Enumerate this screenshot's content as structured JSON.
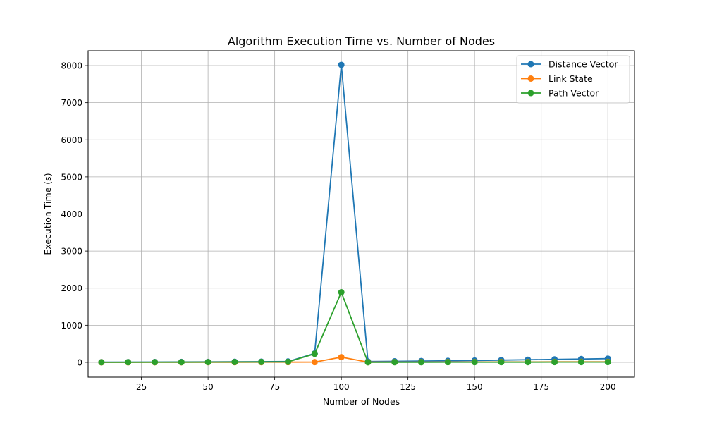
{
  "chart_data": {
    "type": "line",
    "title": "Algorithm Execution Time vs. Number of Nodes",
    "xlabel": "Number of Nodes",
    "ylabel": "Execution Time (s)",
    "xlim": [
      5,
      210
    ],
    "ylim": [
      -400,
      8400
    ],
    "x_ticks": [
      25,
      50,
      75,
      100,
      125,
      150,
      175,
      200
    ],
    "y_ticks": [
      0,
      1000,
      2000,
      3000,
      4000,
      5000,
      6000,
      7000,
      8000
    ],
    "grid": true,
    "legend_position": "top-right",
    "x": [
      10,
      20,
      30,
      40,
      50,
      60,
      70,
      80,
      90,
      100,
      110,
      120,
      130,
      140,
      150,
      160,
      170,
      180,
      190,
      200
    ],
    "series": [
      {
        "name": "Distance Vector",
        "color": "#1f77b4",
        "values": [
          5,
          6,
          8,
          10,
          12,
          15,
          18,
          22,
          240,
          8020,
          22,
          28,
          35,
          42,
          50,
          60,
          70,
          80,
          90,
          100
        ]
      },
      {
        "name": "Link State",
        "color": "#ff7f0e",
        "values": [
          1,
          1,
          2,
          2,
          3,
          3,
          4,
          5,
          6,
          140,
          5,
          6,
          7,
          8,
          9,
          10,
          11,
          12,
          13,
          14
        ]
      },
      {
        "name": "Path Vector",
        "color": "#2ca02c",
        "values": [
          2,
          3,
          4,
          5,
          6,
          8,
          10,
          12,
          230,
          1890,
          2,
          3,
          3,
          4,
          4,
          5,
          5,
          6,
          6,
          7
        ]
      }
    ]
  }
}
